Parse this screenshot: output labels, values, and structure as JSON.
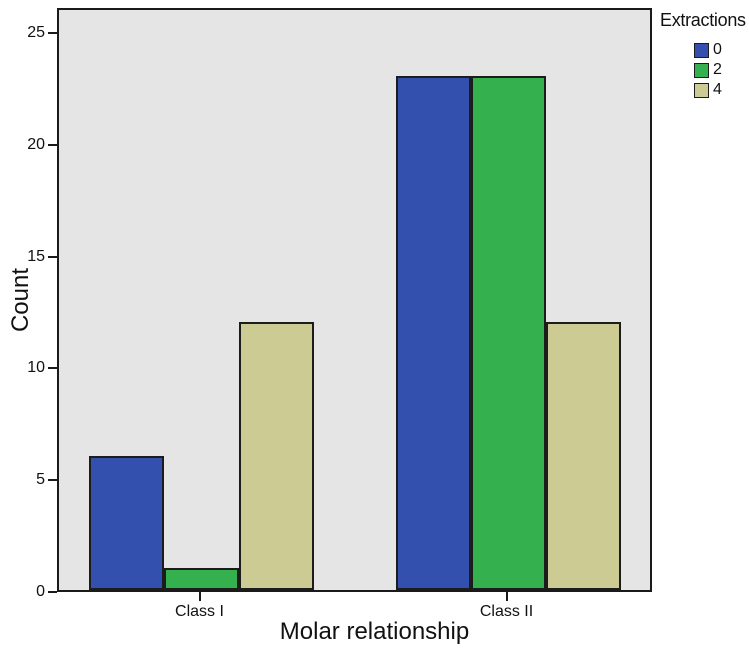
{
  "chart_data": {
    "type": "bar",
    "title": "",
    "xlabel": "Molar relationship",
    "ylabel": "Count",
    "categories": [
      "Class I",
      "Class II"
    ],
    "series": [
      {
        "name": "0",
        "color": "#3450ae",
        "values": [
          6,
          23
        ]
      },
      {
        "name": "2",
        "color": "#35b04e",
        "values": [
          1,
          23
        ]
      },
      {
        "name": "4",
        "color": "#cccb94",
        "values": [
          12,
          12
        ]
      }
    ],
    "legend_title": "Extractions",
    "legend_position": "top-right",
    "y_ticks": [
      0,
      5,
      10,
      15,
      20,
      25
    ],
    "ylim": [
      0,
      26.1
    ],
    "grid": false,
    "plot_background": "#e5e5e5",
    "page_background": "#ffffff",
    "bar_outline_color": "#1c1c1c"
  }
}
